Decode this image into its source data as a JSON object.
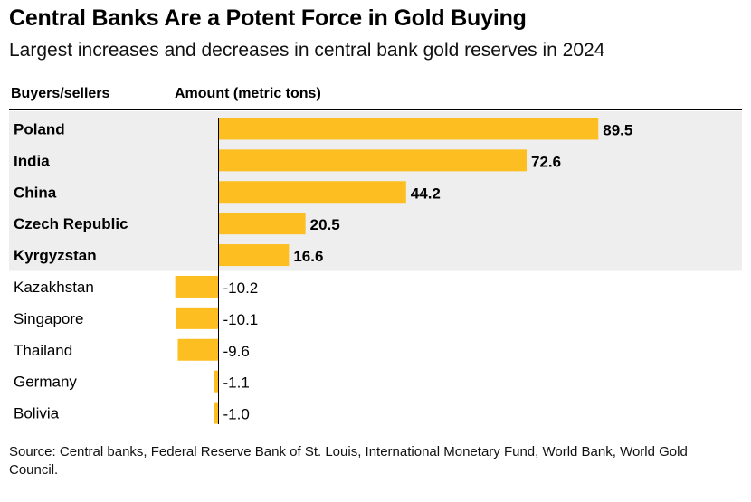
{
  "chart_data": {
    "type": "bar",
    "orientation": "horizontal",
    "title": "Central Banks Are a Potent Force in Gold Buying",
    "subtitle": "Largest increases and decreases in central bank gold reserves in 2024",
    "category_header": "Buyers/sellers",
    "value_header": "Amount (metric tons)",
    "categories": [
      "Poland",
      "India",
      "China",
      "Czech Republic",
      "Kyrgyzstan",
      "Kazakhstan",
      "Singapore",
      "Thailand",
      "Germany",
      "Bolivia"
    ],
    "values": [
      89.5,
      72.6,
      44.2,
      20.5,
      16.6,
      -10.2,
      -10.1,
      -9.6,
      -1.1,
      -1.0
    ],
    "value_labels": [
      "89.5",
      "72.6",
      "44.2",
      "20.5",
      "16.6",
      "-10.2",
      "-10.1",
      "-9.6",
      "-1.1",
      "-1.0"
    ],
    "highlighted_group": "buyers",
    "bar_color": "#FDBE22",
    "highlight_background": "#EEEEEE",
    "source": "Source: Central banks, Federal Reserve Bank of St. Louis, International Monetary Fund, World Bank, World Gold Council."
  }
}
